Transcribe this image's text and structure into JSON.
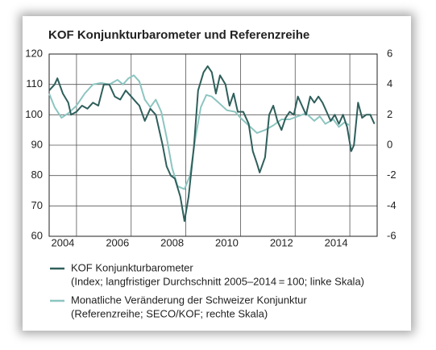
{
  "chart_data": {
    "type": "line",
    "title": "KOF Konjunkturbarometer und Referenzreihe",
    "xlim": [
      2004,
      2016
    ],
    "xticks": [
      2004,
      2006,
      2008,
      2010,
      2012,
      2014
    ],
    "xgrid": [
      2005,
      2007,
      2009,
      2011,
      2013,
      2015
    ],
    "ylim": [
      60,
      120
    ],
    "yticks": [
      60,
      70,
      80,
      90,
      100,
      110,
      120
    ],
    "y2lim": [
      -6,
      6
    ],
    "y2ticks": [
      -6,
      -4,
      -2,
      0,
      2,
      4,
      6
    ],
    "grid": true,
    "series": [
      {
        "name": "KOF Konjunkturbarometer",
        "description": "(Index; langfristiger Durchschnitt 2005–2014 = 100; linke Skala)",
        "color": "#2e5f5b",
        "x": [
          2004.0,
          2004.2,
          2004.3,
          2004.5,
          2004.7,
          2004.8,
          2005.0,
          2005.2,
          2005.4,
          2005.6,
          2005.8,
          2006.0,
          2006.2,
          2006.4,
          2006.6,
          2006.8,
          2007.0,
          2007.2,
          2007.3,
          2007.5,
          2007.7,
          2007.9,
          2008.0,
          2008.15,
          2008.3,
          2008.45,
          2008.6,
          2008.8,
          2008.95,
          2009.1,
          2009.3,
          2009.45,
          2009.65,
          2009.8,
          2009.95,
          2010.1,
          2010.25,
          2010.45,
          2010.6,
          2010.75,
          2010.9,
          2011.1,
          2011.3,
          2011.45,
          2011.6,
          2011.7,
          2011.9,
          2012.05,
          2012.2,
          2012.35,
          2012.5,
          2012.65,
          2012.8,
          2012.95,
          2013.1,
          2013.25,
          2013.4,
          2013.55,
          2013.7,
          2013.85,
          2014.0,
          2014.15,
          2014.3,
          2014.45,
          2014.6,
          2014.75,
          2014.9,
          2015.05,
          2015.15,
          2015.3,
          2015.45,
          2015.6,
          2015.75,
          2015.9
        ],
        "values": [
          108,
          110,
          112,
          107,
          104,
          100,
          101,
          103,
          102,
          104,
          103,
          110,
          110,
          106,
          105,
          108,
          106,
          104,
          103,
          98,
          102,
          100,
          96,
          90,
          83,
          80,
          79,
          73,
          65,
          73,
          90,
          108,
          114,
          116,
          114,
          107,
          113,
          110,
          103,
          107,
          101,
          101,
          97,
          88,
          84,
          81,
          86,
          100,
          103,
          98,
          95,
          99,
          101,
          100,
          106,
          103,
          100,
          106,
          104,
          106,
          104,
          101,
          98,
          100,
          97,
          100,
          96,
          88,
          90,
          104,
          99,
          100,
          100,
          97
        ]
      },
      {
        "name": "Monatliche Veränderung der Schweizer Konjunktur",
        "description": "(Referenzreihe; SECO/KOF; rechte Skala)",
        "color": "#8cc5c0",
        "axis": "y2",
        "x": [
          2004.0,
          2004.2,
          2004.45,
          2004.7,
          2005.0,
          2005.3,
          2005.6,
          2005.9,
          2006.2,
          2006.5,
          2006.7,
          2006.9,
          2007.1,
          2007.3,
          2007.5,
          2007.7,
          2007.9,
          2008.1,
          2008.3,
          2008.5,
          2008.7,
          2008.95,
          2009.15,
          2009.35,
          2009.55,
          2009.75,
          2009.95,
          2010.2,
          2010.5,
          2010.8,
          2011.0,
          2011.3,
          2011.6,
          2011.9,
          2012.2,
          2012.5,
          2012.8,
          2013.1,
          2013.4,
          2013.7,
          2013.9,
          2014.1,
          2014.4,
          2014.6,
          2014.8,
          2015.0
        ],
        "values": [
          3.4,
          2.5,
          1.8,
          2.1,
          2.6,
          3.4,
          4.0,
          4.1,
          4.0,
          4.3,
          4.0,
          4.4,
          4.6,
          4.2,
          3.0,
          2.5,
          3.0,
          2.2,
          0.5,
          -1.5,
          -2.7,
          -2.9,
          -2.0,
          0.5,
          2.5,
          3.3,
          3.2,
          2.8,
          2.3,
          2.2,
          1.8,
          1.3,
          0.8,
          1.0,
          1.3,
          1.7,
          1.7,
          1.9,
          2.1,
          1.6,
          1.9,
          1.4,
          1.7,
          1.2,
          1.5,
          1.3
        ]
      }
    ]
  }
}
